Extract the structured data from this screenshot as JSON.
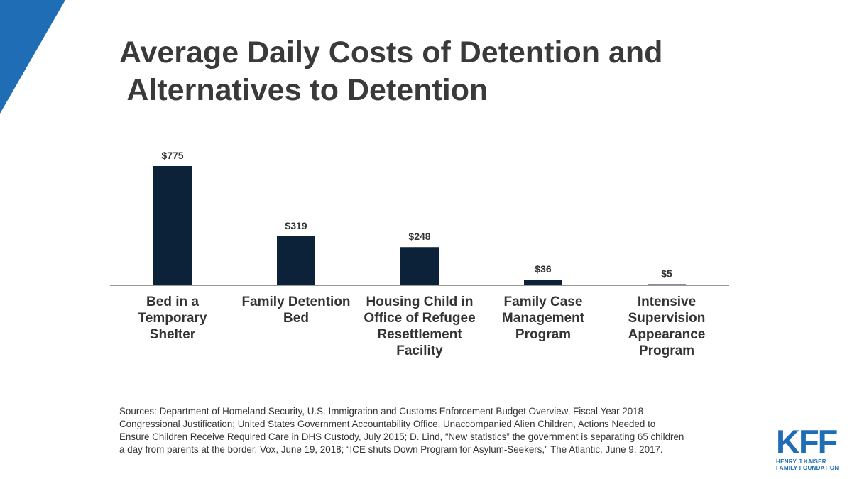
{
  "title": {
    "line1": "Average Daily Costs of Detention and",
    "line2": " Alternatives to Detention"
  },
  "chart_data": {
    "type": "bar",
    "categories": [
      [
        "Bed in a",
        "Temporary",
        "Shelter"
      ],
      [
        "Family Detention",
        "Bed"
      ],
      [
        "Housing Child in",
        "Office of Refugee",
        "Resettlement",
        "Facility"
      ],
      [
        "Family Case",
        "Management",
        "Program"
      ],
      [
        "Intensive",
        "Supervision",
        "Appearance",
        "Program"
      ]
    ],
    "values": [
      775,
      319,
      248,
      36,
      5
    ],
    "value_labels": [
      "$775",
      "$319",
      "$248",
      "$36",
      "$5"
    ],
    "ylim": [
      0,
      775
    ],
    "grid": false,
    "legend": "none",
    "bar_color": "#0b2239"
  },
  "sources": "Sources: Department of Homeland Security, U.S. Immigration and Customs Enforcement Budget Overview, Fiscal Year 2018 Congressional Justification; United States Government Accountability Office, Unaccompanied Alien Children, Actions Needed to Ensure Children Receive Required Care in DHS Custody, July 2015; D. Lind, “New statistics” the government is separating 65 children a day from parents at the border, Vox, June 19, 2018; “ICE shuts Down Program for Asylum-Seekers,” The Atlantic, June 9, 2017.",
  "logo": {
    "text": "KFF",
    "line1": "HENRY J KAISER",
    "line2": "FAMILY FOUNDATION",
    "color": "#1f6eb5"
  },
  "accent_color": "#1f6eb5"
}
